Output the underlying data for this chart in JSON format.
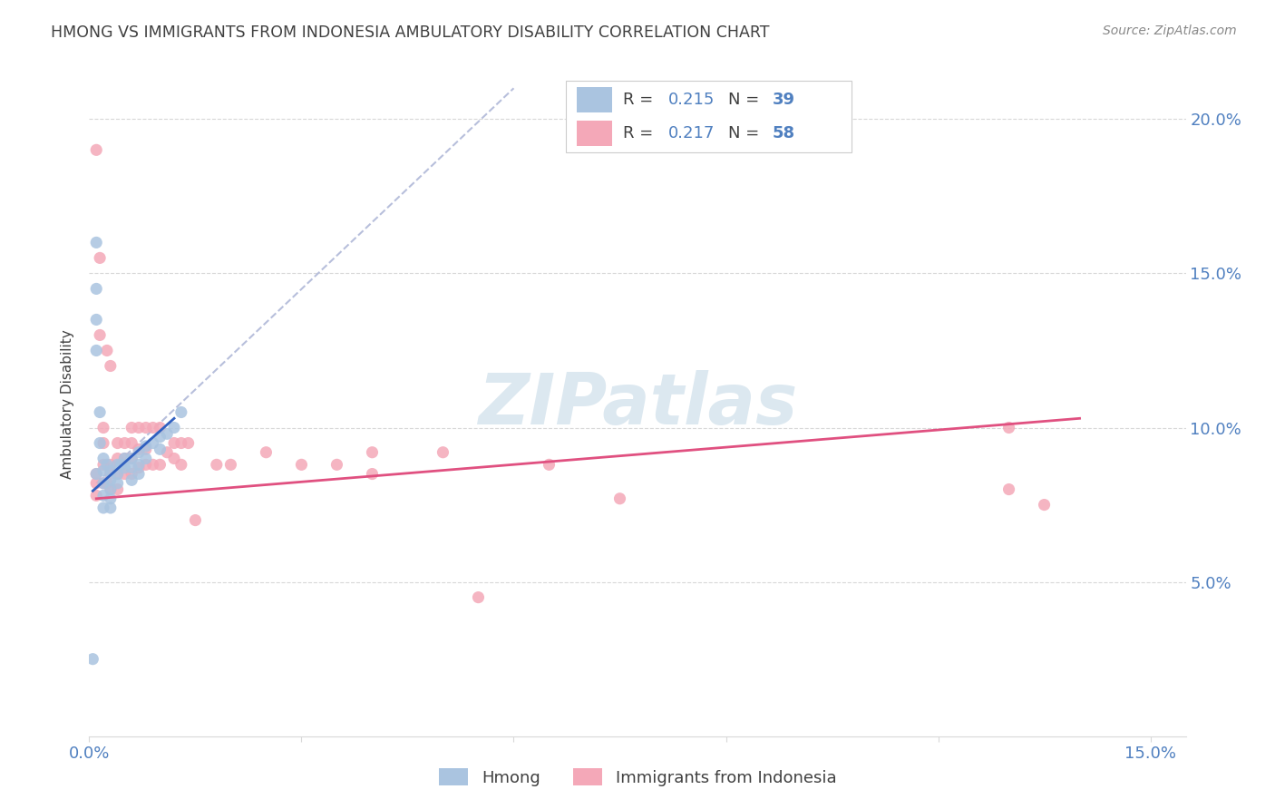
{
  "title": "HMONG VS IMMIGRANTS FROM INDONESIA AMBULATORY DISABILITY CORRELATION CHART",
  "source": "Source: ZipAtlas.com",
  "ylabel": "Ambulatory Disability",
  "xlim": [
    0.0,
    0.155
  ],
  "ylim": [
    0.0,
    0.215
  ],
  "xticks": [
    0.0,
    0.03,
    0.06,
    0.09,
    0.12,
    0.15
  ],
  "xtick_labels": [
    "0.0%",
    "",
    "",
    "",
    "",
    "15.0%"
  ],
  "yticks": [
    0.0,
    0.05,
    0.1,
    0.15,
    0.2
  ],
  "ytick_labels": [
    "",
    "5.0%",
    "10.0%",
    "15.0%",
    "20.0%"
  ],
  "hmong_color": "#aac4e0",
  "indonesia_color": "#f4a8b8",
  "hmong_line_color": "#3060c0",
  "indonesia_line_color": "#e05080",
  "dash_line_color": "#b0b8d8",
  "grid_color": "#d8d8d8",
  "label_color": "#5080c0",
  "text_color": "#404040",
  "hmong_R": 0.215,
  "hmong_N": 39,
  "indonesia_R": 0.217,
  "indonesia_N": 58,
  "legend_label_hmong": "Hmong",
  "legend_label_indonesia": "Immigrants from Indonesia",
  "watermark": "ZIPatlas",
  "hmong_x": [
    0.0005,
    0.001,
    0.001,
    0.001,
    0.001,
    0.001,
    0.0015,
    0.0015,
    0.002,
    0.002,
    0.002,
    0.002,
    0.002,
    0.0025,
    0.003,
    0.003,
    0.003,
    0.003,
    0.003,
    0.004,
    0.004,
    0.004,
    0.0045,
    0.005,
    0.005,
    0.006,
    0.006,
    0.006,
    0.007,
    0.007,
    0.007,
    0.008,
    0.008,
    0.009,
    0.01,
    0.01,
    0.011,
    0.012,
    0.013
  ],
  "hmong_y": [
    0.025,
    0.16,
    0.145,
    0.135,
    0.125,
    0.085,
    0.105,
    0.095,
    0.09,
    0.086,
    0.082,
    0.078,
    0.074,
    0.088,
    0.086,
    0.083,
    0.08,
    0.077,
    0.074,
    0.088,
    0.085,
    0.082,
    0.088,
    0.09,
    0.087,
    0.09,
    0.087,
    0.083,
    0.092,
    0.088,
    0.085,
    0.094,
    0.09,
    0.095,
    0.097,
    0.093,
    0.098,
    0.1,
    0.105
  ],
  "indonesia_x": [
    0.001,
    0.001,
    0.001,
    0.001,
    0.0015,
    0.0015,
    0.002,
    0.002,
    0.002,
    0.002,
    0.0025,
    0.0025,
    0.003,
    0.003,
    0.003,
    0.003,
    0.004,
    0.004,
    0.004,
    0.004,
    0.005,
    0.005,
    0.005,
    0.006,
    0.006,
    0.006,
    0.006,
    0.007,
    0.007,
    0.007,
    0.008,
    0.008,
    0.008,
    0.009,
    0.009,
    0.01,
    0.01,
    0.011,
    0.012,
    0.012,
    0.013,
    0.013,
    0.014,
    0.015,
    0.018,
    0.02,
    0.025,
    0.03,
    0.035,
    0.04,
    0.04,
    0.05,
    0.055,
    0.065,
    0.075,
    0.13,
    0.13,
    0.135
  ],
  "indonesia_y": [
    0.19,
    0.085,
    0.082,
    0.078,
    0.155,
    0.13,
    0.1,
    0.095,
    0.088,
    0.082,
    0.125,
    0.082,
    0.12,
    0.088,
    0.085,
    0.08,
    0.095,
    0.09,
    0.085,
    0.08,
    0.095,
    0.09,
    0.085,
    0.1,
    0.095,
    0.09,
    0.085,
    0.1,
    0.093,
    0.087,
    0.1,
    0.093,
    0.088,
    0.1,
    0.088,
    0.1,
    0.088,
    0.092,
    0.095,
    0.09,
    0.095,
    0.088,
    0.095,
    0.07,
    0.088,
    0.088,
    0.092,
    0.088,
    0.088,
    0.092,
    0.085,
    0.092,
    0.045,
    0.088,
    0.077,
    0.1,
    0.08,
    0.075
  ],
  "hmong_trend": [
    0.0005,
    0.012,
    0.0795,
    0.103
  ],
  "indonesia_trend": [
    0.001,
    0.14,
    0.077,
    0.103
  ],
  "dash_line": [
    0.001,
    0.06,
    0.082,
    0.21
  ]
}
